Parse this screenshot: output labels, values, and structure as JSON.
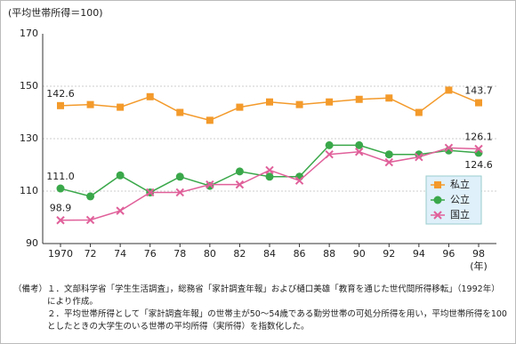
{
  "chart_data": {
    "type": "line",
    "y_label": "(平均世帯所得＝100)",
    "x_unit": "(年)",
    "categories": [
      "1970",
      "72",
      "74",
      "76",
      "78",
      "80",
      "82",
      "84",
      "86",
      "88",
      "90",
      "92",
      "94",
      "96",
      "98"
    ],
    "series": [
      {
        "name": "私立",
        "color": "#f39a2b",
        "marker": "square",
        "values": [
          142.6,
          143,
          142,
          146,
          140,
          137,
          142,
          144,
          143,
          144,
          145,
          145.5,
          140,
          148.5,
          143.7
        ],
        "value_labels": [
          "142.6",
          null,
          null,
          null,
          null,
          null,
          null,
          null,
          null,
          null,
          null,
          null,
          null,
          null,
          "143.7"
        ]
      },
      {
        "name": "公立",
        "color": "#3aa84a",
        "marker": "circle",
        "values": [
          111.0,
          108,
          116,
          109.5,
          115.5,
          112,
          117.5,
          115.5,
          115.5,
          127.5,
          127.5,
          124,
          124,
          125.5,
          124.6
        ],
        "value_labels": [
          "111.0",
          null,
          null,
          null,
          null,
          null,
          null,
          null,
          null,
          null,
          null,
          null,
          null,
          null,
          "124.6"
        ]
      },
      {
        "name": "国立",
        "color": "#e0609a",
        "marker": "cross",
        "values": [
          98.9,
          99,
          102.5,
          109.5,
          109.5,
          112.5,
          112.5,
          118,
          114,
          124,
          125,
          121,
          123,
          126.5,
          126.1
        ],
        "value_labels": [
          "98.9",
          null,
          null,
          null,
          null,
          null,
          null,
          null,
          null,
          null,
          null,
          null,
          null,
          null,
          "126.1"
        ]
      }
    ],
    "ylim": [
      90,
      170
    ],
    "yticks": [
      90,
      110,
      130,
      150,
      170
    ],
    "grid": true,
    "legend": "right"
  },
  "notes": {
    "prefix": "（備考）",
    "items": [
      "１．文部科学省「学生生活調査」，総務省「家計調査年報」および樋口美雄「教育を通じた世代間所得移転」（1992年）により作成。",
      "２．平均世帯所得として「家計調査年報」の世帯主が50～54歳である勤労世帯の可処分所得を用い，平均世帯所得を100としたときの大学生のいる世帯の平均所得（実所得）を指数化した。"
    ]
  }
}
